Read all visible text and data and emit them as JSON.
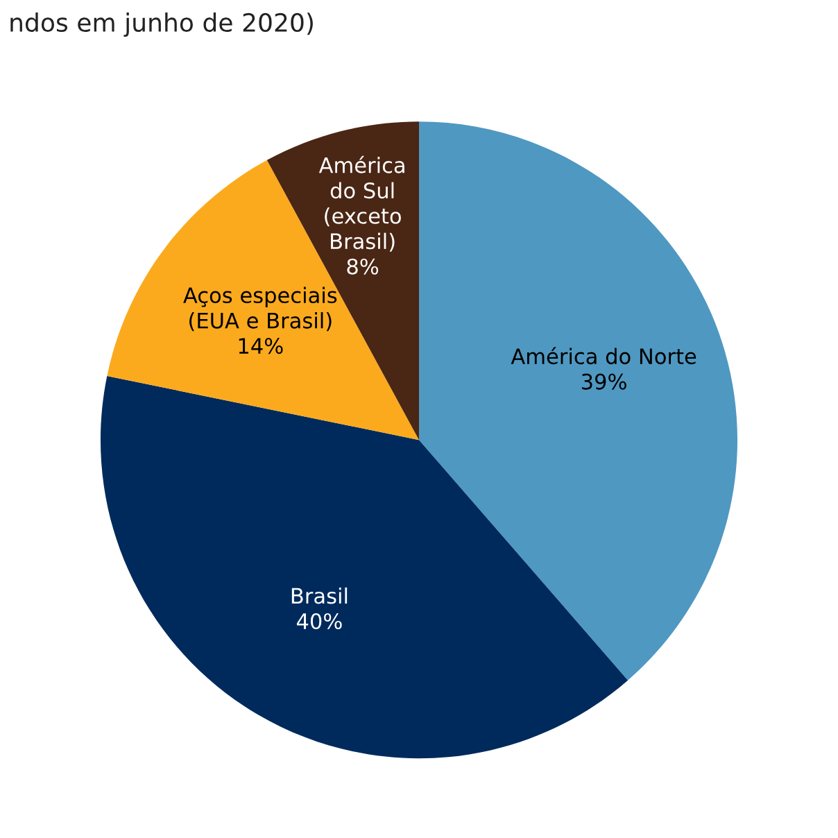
{
  "chart_data": {
    "type": "pie",
    "title": "ndos em junho de 2020)",
    "categories": [
      "América do Norte",
      "Brasil",
      "Aços especiais\n(EUA e Brasil)",
      "América\ndo Sul\n(exceto\nBrasil)"
    ],
    "values": [
      39,
      40,
      14,
      8
    ],
    "colors": [
      "#4f98c2",
      "#002a5c",
      "#fbaa1d",
      "#4a2614"
    ],
    "value_labels": [
      "39%",
      "40%",
      "14%",
      "8%"
    ]
  }
}
